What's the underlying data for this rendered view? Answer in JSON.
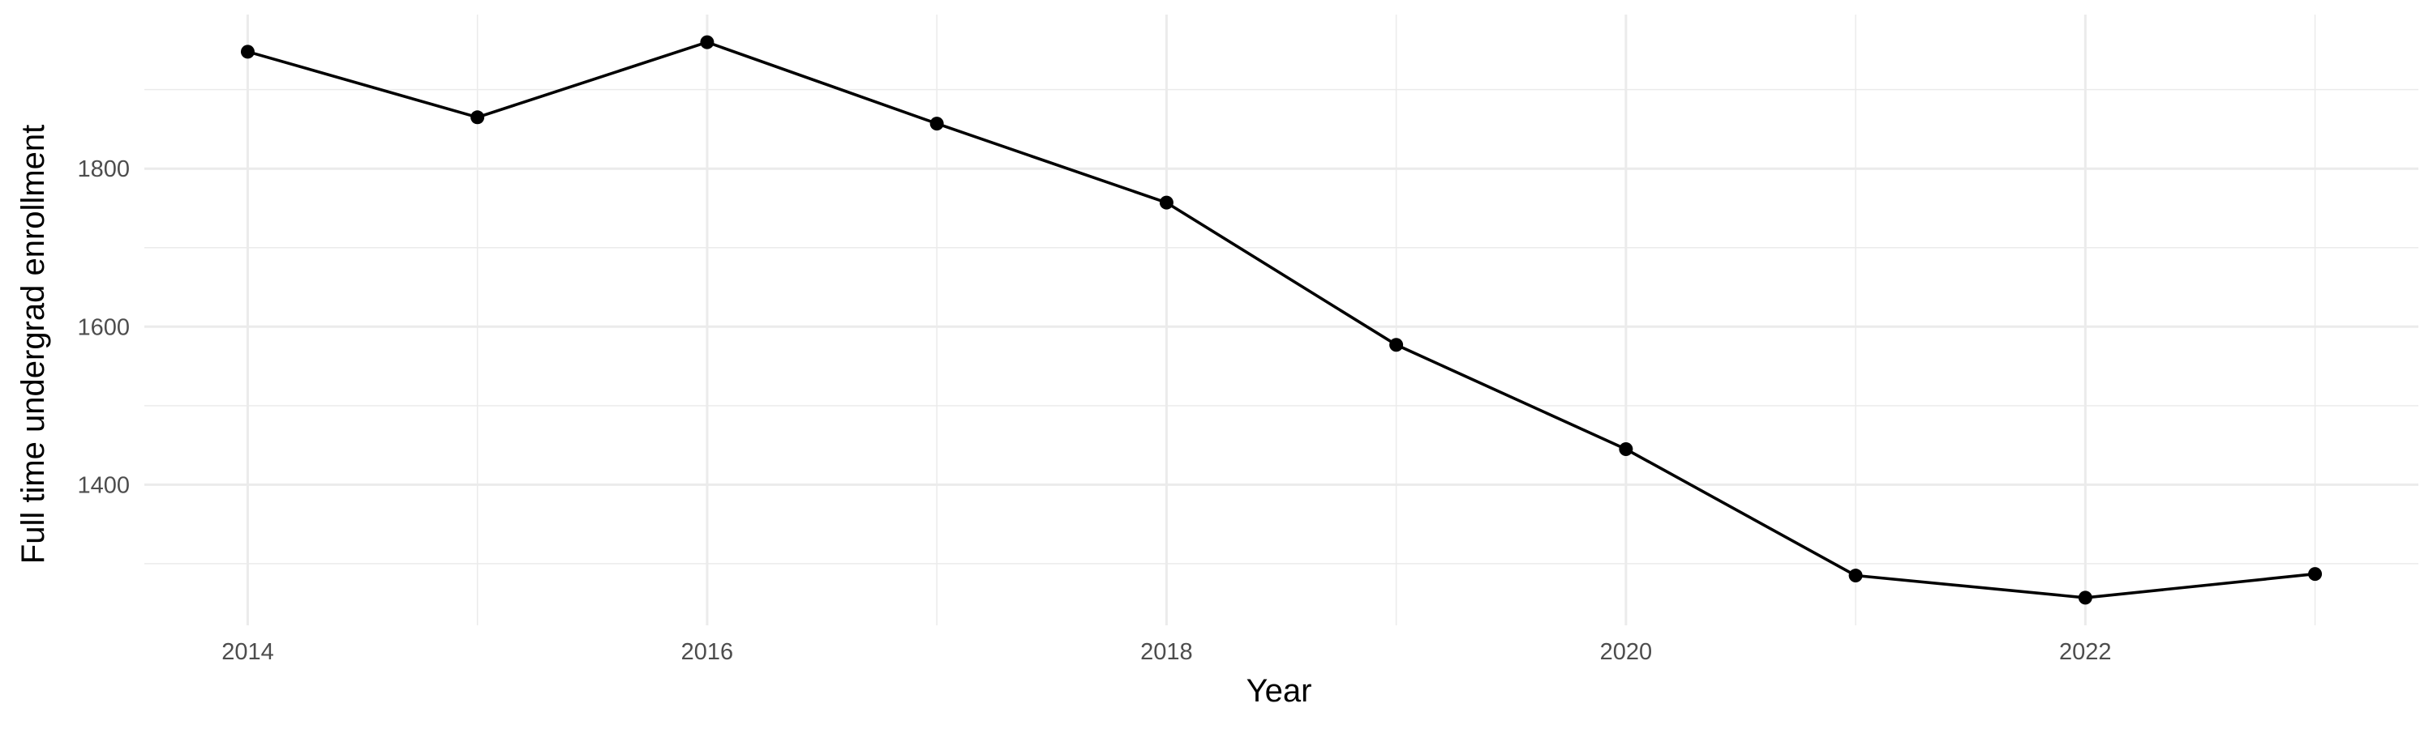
{
  "chart_data": {
    "type": "line",
    "xlabel": "Year",
    "ylabel": "Full time undergrad enrollment",
    "x": [
      2014,
      2015,
      2016,
      2017,
      2018,
      2019,
      2020,
      2021,
      2022,
      2023
    ],
    "series": [
      {
        "values": [
          1948,
          1865,
          1960,
          1857,
          1757,
          1577,
          1445,
          1285,
          1257,
          1287
        ]
      }
    ],
    "xticks": [
      2014,
      2016,
      2018,
      2020,
      2022
    ],
    "xtick_labels": [
      "2014",
      "2016",
      "2018",
      "2020",
      "2022"
    ],
    "yticks": [
      1400,
      1600,
      1800
    ],
    "ytick_labels": [
      "1400",
      "1600",
      "1800"
    ],
    "xlim": [
      2013.55,
      2023.45
    ],
    "ylim": [
      1222,
      1995
    ],
    "grid": true,
    "legend": "none",
    "colors": {
      "line": "#000000",
      "points": "#000000",
      "grid": "#ebebeb",
      "background": "#ffffff"
    }
  }
}
